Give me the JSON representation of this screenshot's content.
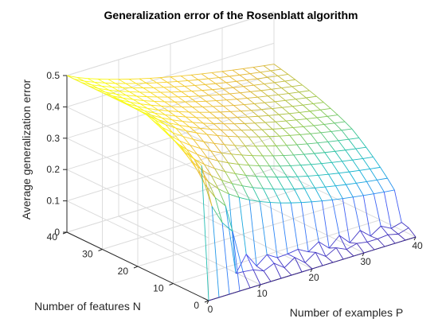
{
  "chart_data": {
    "type": "surface",
    "title": "Generalization error of the Rosenblatt algorithm",
    "xlabel": "Number of examples P",
    "ylabel": "Number of features N",
    "zlabel": "Average generalization error",
    "xlim": [
      0,
      40
    ],
    "ylim": [
      0,
      40
    ],
    "zlim": [
      0,
      0.5
    ],
    "xticks": [
      "0",
      "10",
      "20",
      "30",
      "40"
    ],
    "yticks": [
      "0",
      "10",
      "20",
      "30",
      "40"
    ],
    "zticks": [
      "0",
      "0.1",
      "0.2",
      "0.3",
      "0.4",
      "0.5"
    ],
    "grid": true,
    "colormap": [
      "#3e26a8",
      "#4850f2",
      "#2e86f8",
      "#12b1d6",
      "#2ac3a0",
      "#8fc84a",
      "#e3b634",
      "#f8d12a",
      "#f9fb15"
    ],
    "x": [
      0,
      2,
      4,
      6,
      8,
      10,
      12,
      14,
      16,
      18,
      20,
      22,
      24,
      26,
      28,
      30,
      32,
      34,
      36,
      38,
      40
    ],
    "y": [
      0,
      2,
      4,
      6,
      8,
      10,
      12,
      14,
      16,
      18,
      20,
      22,
      24,
      26,
      28,
      30,
      32,
      34,
      36,
      38,
      40
    ],
    "z_model": "average generalization error ≈ 0.5·(1 − 0.5·α^0.9/(1+0.5·α^0.9)) with α = P/N; 0 where N = 0; noisy small values near N ≈ 0–4",
    "z_corners": {
      "P0_N40": 0.46,
      "P40_N40": 0.33,
      "P40_N6": 0.0,
      "P0_N0": 0.0
    }
  }
}
